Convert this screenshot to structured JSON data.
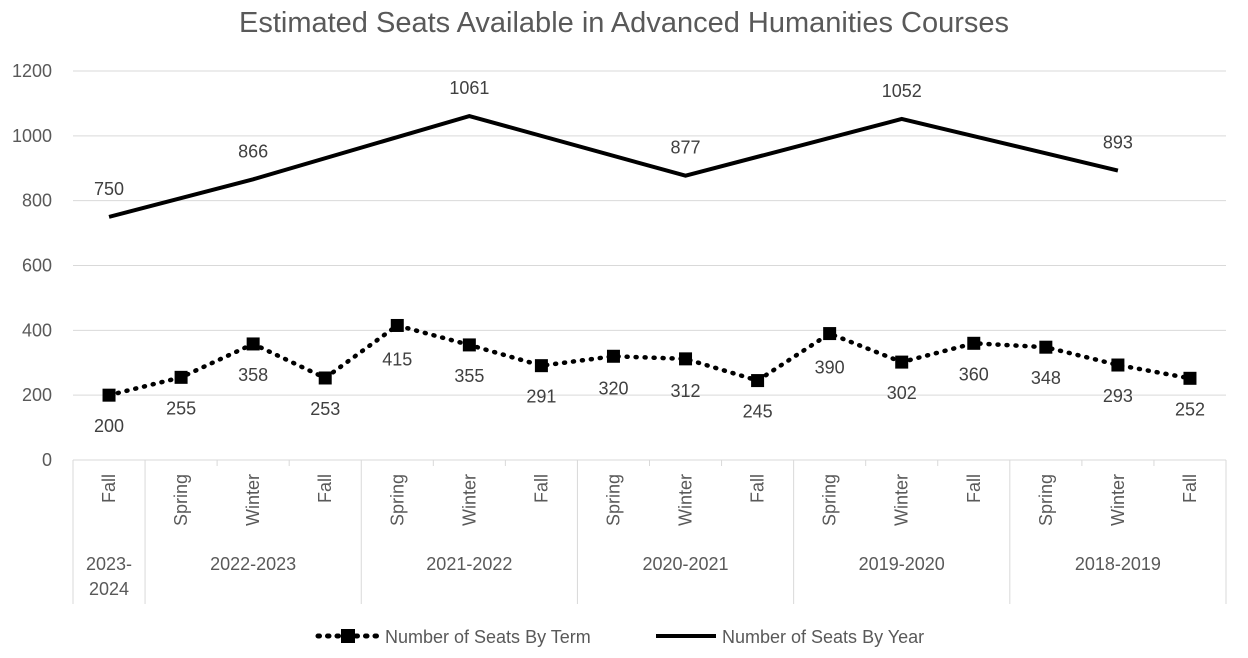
{
  "chart_data": {
    "type": "line",
    "title": "Estimated Seats Available in Advanced Humanities Courses",
    "ylim": [
      0,
      1200
    ],
    "yticks": [
      0,
      200,
      400,
      600,
      800,
      1000,
      1200
    ],
    "grid": true,
    "legend_position": "bottom",
    "categories": [
      {
        "term": "Fall",
        "year": "2023-2024"
      },
      {
        "term": "Spring",
        "year": "2022-2023"
      },
      {
        "term": "Winter",
        "year": "2022-2023"
      },
      {
        "term": "Fall",
        "year": "2022-2023"
      },
      {
        "term": "Spring",
        "year": "2021-2022"
      },
      {
        "term": "Winter",
        "year": "2021-2022"
      },
      {
        "term": "Fall",
        "year": "2021-2022"
      },
      {
        "term": "Spring",
        "year": "2020-2021"
      },
      {
        "term": "Winter",
        "year": "2020-2021"
      },
      {
        "term": "Fall",
        "year": "2020-2021"
      },
      {
        "term": "Spring",
        "year": "2019-2020"
      },
      {
        "term": "Winter",
        "year": "2019-2020"
      },
      {
        "term": "Fall",
        "year": "2019-2020"
      },
      {
        "term": "Spring",
        "year": "2018-2019"
      },
      {
        "term": "Winter",
        "year": "2018-2019"
      },
      {
        "term": "Fall",
        "year": "2018-2019"
      }
    ],
    "year_groups": [
      {
        "label": "2023-\n2024",
        "count": 1
      },
      {
        "label": "2022-2023",
        "count": 3
      },
      {
        "label": "2021-2022",
        "count": 3
      },
      {
        "label": "2020-2021",
        "count": 3
      },
      {
        "label": "2019-2020",
        "count": 3
      },
      {
        "label": "2018-2019",
        "count": 3
      }
    ],
    "series": [
      {
        "name": "Number of Seats By Term",
        "style": "dotted-square-markers",
        "color": "#000000",
        "values": [
          200,
          255,
          358,
          253,
          415,
          355,
          291,
          320,
          312,
          245,
          390,
          302,
          360,
          348,
          293,
          252
        ]
      },
      {
        "name": "Number of Seats By Year",
        "style": "solid",
        "color": "#000000",
        "values": [
          750,
          null,
          866,
          null,
          null,
          1061,
          null,
          null,
          877,
          null,
          null,
          1052,
          null,
          null,
          893,
          null
        ]
      }
    ]
  }
}
